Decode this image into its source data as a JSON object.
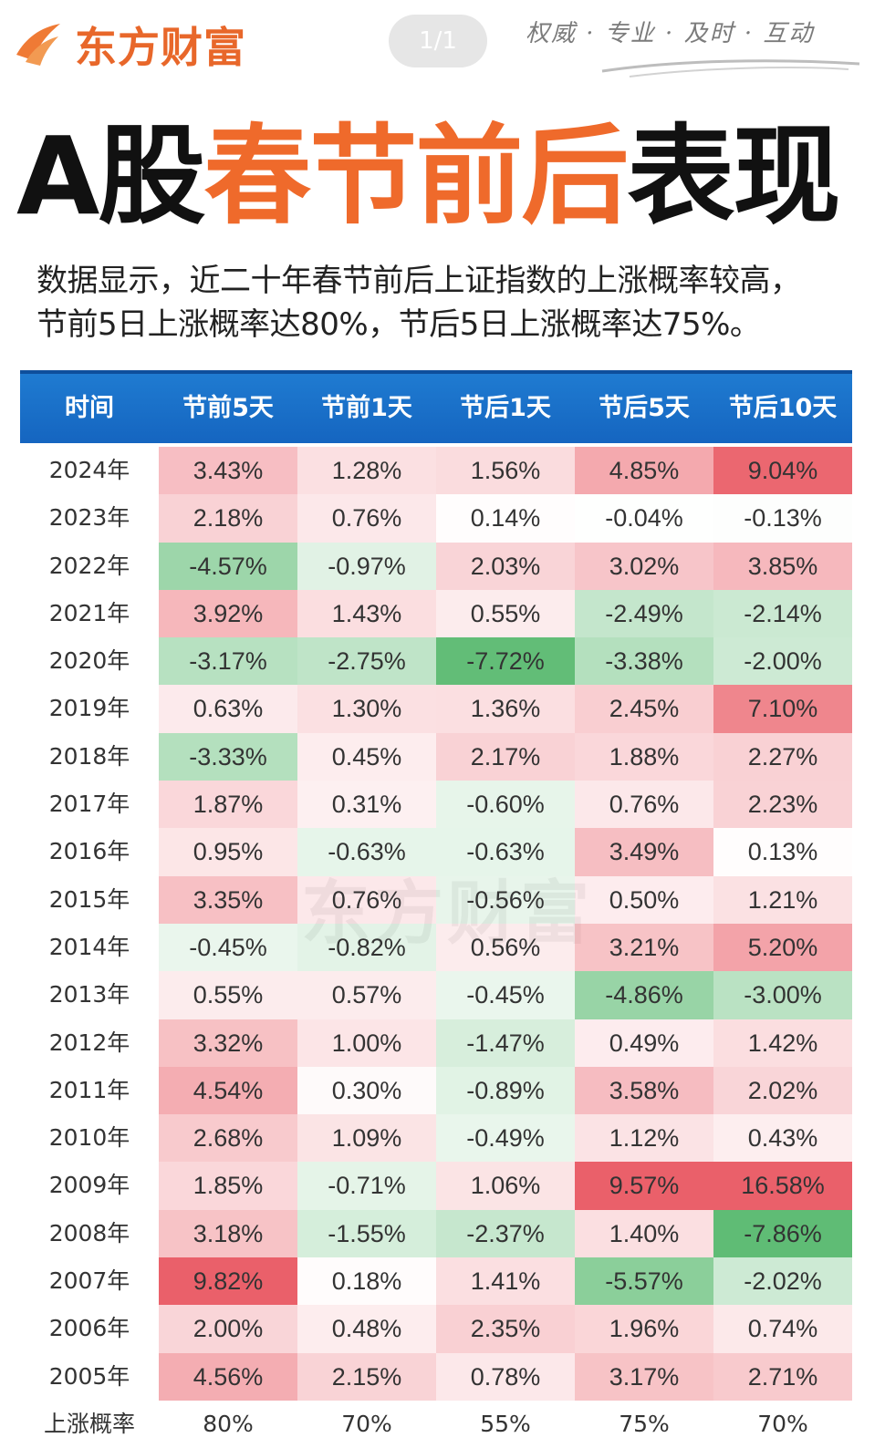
{
  "header": {
    "brand": "东方财富",
    "page_indicator": "1/1",
    "slogan": "权威 · 专业 · 及时 · 互动",
    "brand_color": "#e8672a"
  },
  "headline": {
    "part1": "A股",
    "part2": "春节前后",
    "part3": "表现"
  },
  "intro": {
    "line1": "数据显示，近二十年春节前后上证指数的上涨概率较高，",
    "line2": "节前5日上涨概率达80%，节后5日上涨概率达75%。"
  },
  "table": {
    "columns": [
      "时间",
      "节前5天",
      "节前1天",
      "节后1天",
      "节后5天",
      "节后10天"
    ],
    "rows": [
      {
        "year": "2024年",
        "values": [
          "3.43%",
          "1.28%",
          "1.56%",
          "4.85%",
          "9.04%"
        ]
      },
      {
        "year": "2023年",
        "values": [
          "2.18%",
          "0.76%",
          "0.14%",
          "-0.04%",
          "-0.13%"
        ]
      },
      {
        "year": "2022年",
        "values": [
          "-4.57%",
          "-0.97%",
          "2.03%",
          "3.02%",
          "3.85%"
        ]
      },
      {
        "year": "2021年",
        "values": [
          "3.92%",
          "1.43%",
          "0.55%",
          "-2.49%",
          "-2.14%"
        ]
      },
      {
        "year": "2020年",
        "values": [
          "-3.17%",
          "-2.75%",
          "-7.72%",
          "-3.38%",
          "-2.00%"
        ]
      },
      {
        "year": "2019年",
        "values": [
          "0.63%",
          "1.30%",
          "1.36%",
          "2.45%",
          "7.10%"
        ]
      },
      {
        "year": "2018年",
        "values": [
          "-3.33%",
          "0.45%",
          "2.17%",
          "1.88%",
          "2.27%"
        ]
      },
      {
        "year": "2017年",
        "values": [
          "1.87%",
          "0.31%",
          "-0.60%",
          "0.76%",
          "2.23%"
        ]
      },
      {
        "year": "2016年",
        "values": [
          "0.95%",
          "-0.63%",
          "-0.63%",
          "3.49%",
          "0.13%"
        ]
      },
      {
        "year": "2015年",
        "values": [
          "3.35%",
          "0.76%",
          "-0.56%",
          "0.50%",
          "1.21%"
        ]
      },
      {
        "year": "2014年",
        "values": [
          "-0.45%",
          "-0.82%",
          "0.56%",
          "3.21%",
          "5.20%"
        ]
      },
      {
        "year": "2013年",
        "values": [
          "0.55%",
          "0.57%",
          "-0.45%",
          "-4.86%",
          "-3.00%"
        ]
      },
      {
        "year": "2012年",
        "values": [
          "3.32%",
          "1.00%",
          "-1.47%",
          "0.49%",
          "1.42%"
        ]
      },
      {
        "year": "2011年",
        "values": [
          "4.54%",
          "0.30%",
          "-0.89%",
          "3.58%",
          "2.02%"
        ]
      },
      {
        "year": "2010年",
        "values": [
          "2.68%",
          "1.09%",
          "-0.49%",
          "1.12%",
          "0.43%"
        ]
      },
      {
        "year": "2009年",
        "values": [
          "1.85%",
          "-0.71%",
          "1.06%",
          "9.57%",
          "16.58%"
        ]
      },
      {
        "year": "2008年",
        "values": [
          "3.18%",
          "-1.55%",
          "-2.37%",
          "1.40%",
          "-7.86%"
        ]
      },
      {
        "year": "2007年",
        "values": [
          "9.82%",
          "0.18%",
          "1.41%",
          "-5.57%",
          "-2.02%"
        ]
      },
      {
        "year": "2006年",
        "values": [
          "2.00%",
          "0.48%",
          "2.35%",
          "1.96%",
          "0.74%"
        ]
      },
      {
        "year": "2005年",
        "values": [
          "4.56%",
          "2.15%",
          "0.78%",
          "3.17%",
          "2.71%"
        ]
      }
    ],
    "footer": {
      "label": "上涨概率",
      "values": [
        "80%",
        "70%",
        "55%",
        "75%",
        "70%"
      ]
    },
    "heat_colors": {
      "positive": "#e8505b",
      "negative": "#2ea84a"
    }
  },
  "watermark": "东方财富"
}
